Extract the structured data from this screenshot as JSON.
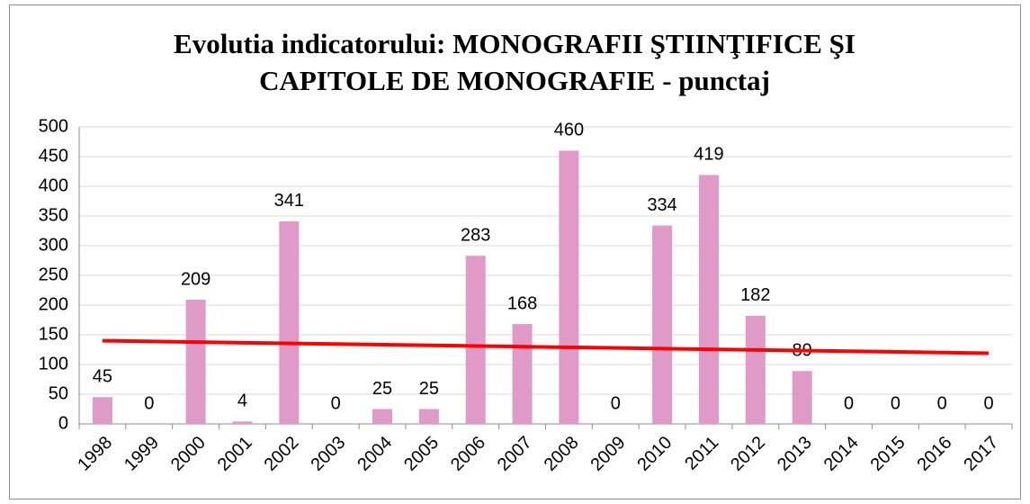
{
  "chart_data": {
    "type": "bar",
    "title": [
      "Evolutia indicatorului: MONOGRAFII ŞTIINŢIFICE ŞI",
      "CAPITOLE DE MONOGRAFIE - punctaj"
    ],
    "categories": [
      "1998",
      "1999",
      "2000",
      "2001",
      "2002",
      "2003",
      "2004",
      "2005",
      "2006",
      "2007",
      "2008",
      "2009",
      "2010",
      "2011",
      "2012",
      "2013",
      "2014",
      "2015",
      "2016",
      "2017"
    ],
    "values": [
      45,
      0,
      209,
      4,
      341,
      0,
      25,
      25,
      283,
      168,
      460,
      0,
      334,
      419,
      182,
      89,
      0,
      0,
      0,
      0
    ],
    "color": "#df9ac8",
    "trendline": {
      "start": 140,
      "end": 119,
      "color": "#ff0000"
    },
    "ylim": [
      0,
      500
    ],
    "yticks": [
      0,
      50,
      100,
      150,
      200,
      250,
      300,
      350,
      400,
      450,
      500
    ],
    "grid": true
  }
}
